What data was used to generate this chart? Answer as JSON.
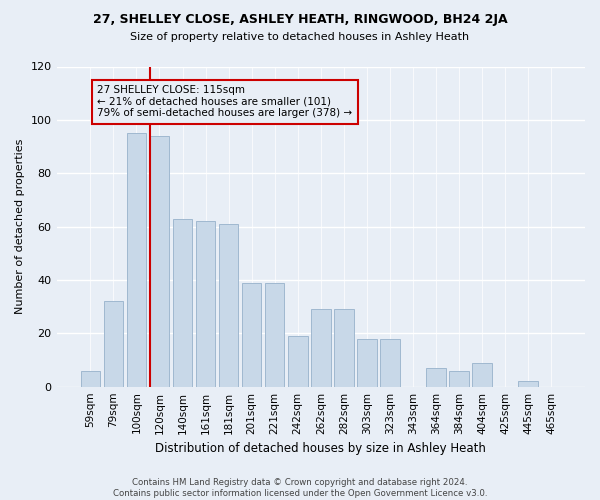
{
  "title": "27, SHELLEY CLOSE, ASHLEY HEATH, RINGWOOD, BH24 2JA",
  "subtitle": "Size of property relative to detached houses in Ashley Heath",
  "xlabel": "Distribution of detached houses by size in Ashley Heath",
  "ylabel": "Number of detached properties",
  "bar_labels": [
    "59sqm",
    "79sqm",
    "100sqm",
    "120sqm",
    "140sqm",
    "161sqm",
    "181sqm",
    "201sqm",
    "221sqm",
    "242sqm",
    "262sqm",
    "282sqm",
    "303sqm",
    "323sqm",
    "343sqm",
    "364sqm",
    "384sqm",
    "404sqm",
    "425sqm",
    "445sqm",
    "465sqm"
  ],
  "bar_values": [
    6,
    32,
    95,
    94,
    63,
    62,
    61,
    39,
    39,
    19,
    29,
    29,
    18,
    18,
    0,
    7,
    6,
    9,
    0,
    2,
    0
  ],
  "bar_color": "#c8d8e8",
  "bar_edge_color": "#a0b8d0",
  "bg_color": "#e8eef6",
  "grid_color": "#ffffff",
  "vline_color": "#cc0000",
  "annotation_text": "27 SHELLEY CLOSE: 115sqm\n← 21% of detached houses are smaller (101)\n79% of semi-detached houses are larger (378) →",
  "annotation_box_color": "#cc0000",
  "footer": "Contains HM Land Registry data © Crown copyright and database right 2024.\nContains public sector information licensed under the Open Government Licence v3.0.",
  "ylim": [
    0,
    120
  ],
  "yticks": [
    0,
    20,
    40,
    60,
    80,
    100,
    120
  ]
}
